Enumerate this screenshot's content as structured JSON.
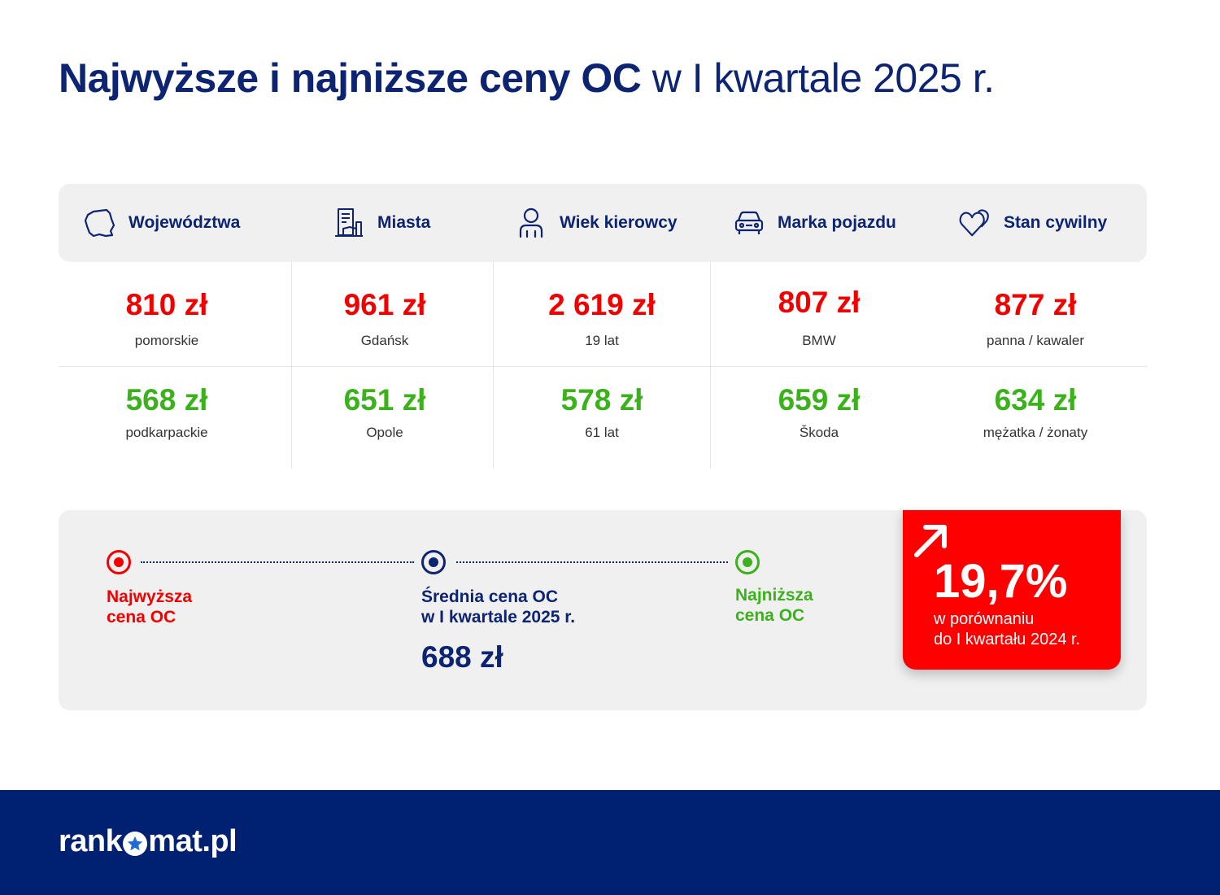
{
  "title": {
    "bold": "Najwyższe i najniższe ceny OC",
    "light": "w I kwartale 2025 r."
  },
  "categories": [
    {
      "label": "Województwa",
      "icon": "poland-map-icon"
    },
    {
      "label": "Miasta",
      "icon": "city-building-icon"
    },
    {
      "label": "Wiek kierowcy",
      "icon": "person-icon"
    },
    {
      "label": "Marka pojazdu",
      "icon": "car-icon"
    },
    {
      "label": "Stan cywilny",
      "icon": "hearts-icon"
    }
  ],
  "highest": [
    {
      "value": "810 zł",
      "label": "pomorskie"
    },
    {
      "value": "961 zł",
      "label": "Gdańsk"
    },
    {
      "value": "2 619 zł",
      "label": "19 lat"
    },
    {
      "value": "807 zł",
      "label": "BMW"
    },
    {
      "value": "877 zł",
      "label": "panna / kawaler"
    }
  ],
  "lowest": [
    {
      "value": "568 zł",
      "label": "podkarpackie"
    },
    {
      "value": "651 zł",
      "label": "Opole"
    },
    {
      "value": "578 zł",
      "label": "61 lat"
    },
    {
      "value": "659 zł",
      "label": "Škoda"
    },
    {
      "value": "634 zł",
      "label": "mężatka / żonaty"
    }
  ],
  "summary": {
    "highest_label": [
      "Najwyższa",
      "cena OC"
    ],
    "average_label": [
      "Średnia cena OC",
      "w I kwartale 2025 r."
    ],
    "average_value": "688 zł",
    "lowest_label": [
      "Najniższa",
      "cena OC"
    ]
  },
  "badge": {
    "percent": "19,7%",
    "comparison": [
      "w porównaniu",
      "do I kwartału 2024 r."
    ]
  },
  "footer": {
    "logo_left": "rank",
    "logo_right": "mat.pl"
  },
  "colors": {
    "navy": "#0d2472",
    "red": "#f20000",
    "green": "#3bb21c",
    "footer": "#002072",
    "panel": "#f0f0f0"
  }
}
